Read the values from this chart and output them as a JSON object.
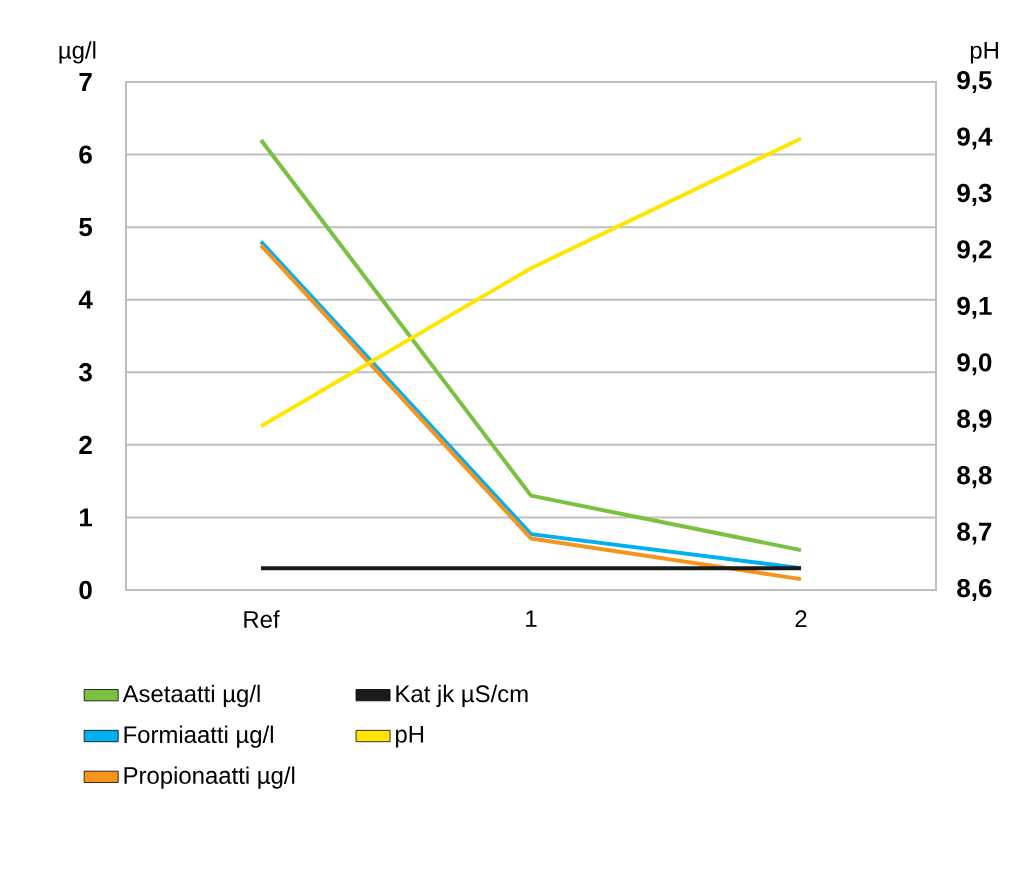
{
  "chart_data": {
    "type": "line",
    "ylabel": "µg/l",
    "y2label": "pH",
    "categories": [
      "Ref",
      "1",
      "2"
    ],
    "series": [
      {
        "name": "Asetaatti µg/l",
        "color": "#7ac142",
        "values": [
          6.2,
          1.3,
          0.55
        ]
      },
      {
        "name": "Formiaatti µg/l",
        "color": "#00b0f0",
        "values": [
          4.8,
          0.77,
          0.3
        ]
      },
      {
        "name": "Propionaatti µg/l",
        "color": "#f7941d",
        "values": [
          4.75,
          0.71,
          0.15
        ]
      },
      {
        "name": "Kat jk µS/cm",
        "color": "#1a1a1a",
        "values": [
          0.3,
          0.3,
          0.3
        ]
      },
      {
        "name": "pH",
        "color": "#ffe600",
        "values": [
          8.89,
          9.17,
          9.4
        ],
        "axis": "y2"
      }
    ],
    "ylim": [
      0,
      7
    ],
    "yticks": [
      0,
      1,
      2,
      3,
      4,
      5,
      6,
      7
    ],
    "y2lim": [
      8.6,
      9.5
    ],
    "y2ticks": [
      {
        "value": 8.6,
        "label": "8,6"
      },
      {
        "value": 8.7,
        "label": "8,7"
      },
      {
        "value": 8.8,
        "label": "8,8"
      },
      {
        "value": 8.9,
        "label": "8,9"
      },
      {
        "value": 9.0,
        "label": "9,0"
      },
      {
        "value": 9.1,
        "label": "9,1"
      },
      {
        "value": 9.2,
        "label": "9,2"
      },
      {
        "value": 9.3,
        "label": "9,3"
      },
      {
        "value": 9.4,
        "label": "9,4"
      },
      {
        "value": 9.5,
        "label": "9,5"
      }
    ],
    "grid": "y",
    "legend": "bottom",
    "line_style": "solid"
  }
}
